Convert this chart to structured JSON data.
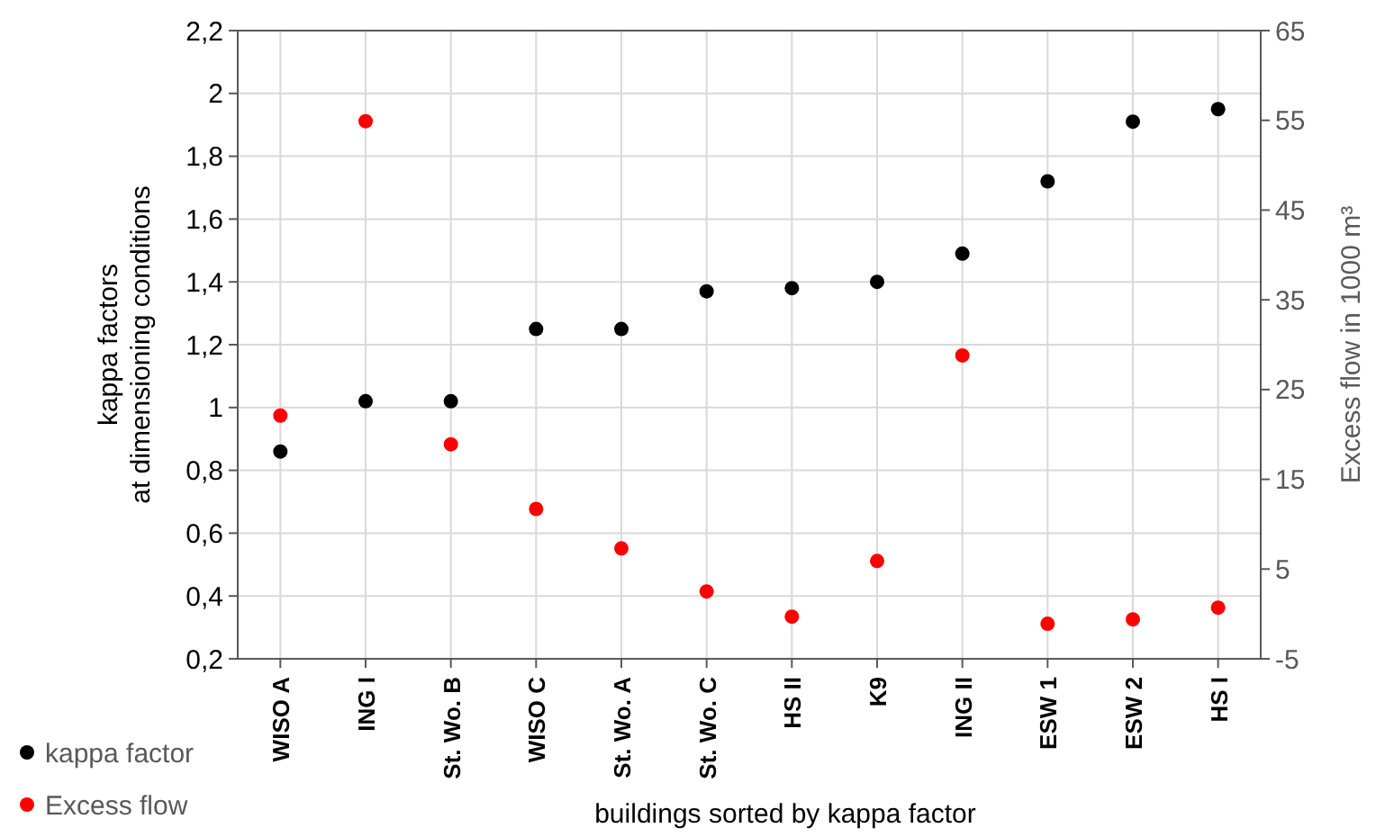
{
  "chart_data": {
    "type": "scatter",
    "xlabel": "buildings sorted by kappa factor",
    "ylabel": "kappa factors\nat dimensioning conditions",
    "y2label": "Excess flow in 1000 m³",
    "categories": [
      "WISO A",
      "ING I",
      "St. Wo. B",
      "WISO C",
      "St. Wo. A",
      "St. Wo. C",
      "HS II",
      "K9",
      "ING II",
      "ESW 1",
      "ESW 2",
      "HS I"
    ],
    "series": [
      {
        "name": "kappa factor",
        "color": "#000000",
        "values": [
          0.86,
          1.02,
          1.02,
          1.25,
          1.25,
          1.37,
          1.38,
          1.4,
          1.49,
          1.72,
          1.91,
          1.95
        ]
      },
      {
        "name": "Excess flow",
        "color": "#ff0000",
        "axis": "y2",
        "values": [
          22.1,
          54.9,
          18.9,
          11.7,
          7.3,
          2.5,
          -0.3,
          5.9,
          28.8,
          -1.1,
          -0.6,
          0.7
        ]
      }
    ],
    "ylim": [
      0.2,
      2.2
    ],
    "yticks": [
      {
        "value": 0.2,
        "label": "0,2"
      },
      {
        "value": 0.4,
        "label": "0,4"
      },
      {
        "value": 0.6,
        "label": "0,6"
      },
      {
        "value": 0.8,
        "label": "0,8"
      },
      {
        "value": 1,
        "label": "1"
      },
      {
        "value": 1.2,
        "label": "1,2"
      },
      {
        "value": 1.4,
        "label": "1,4"
      },
      {
        "value": 1.6,
        "label": "1,6"
      },
      {
        "value": 1.8,
        "label": "1,8"
      },
      {
        "value": 2,
        "label": "2"
      },
      {
        "value": 2.2,
        "label": "2,2"
      }
    ],
    "y2lim": [
      -5,
      65
    ],
    "y2ticks": [
      -5,
      5,
      15,
      25,
      35,
      45,
      55,
      65
    ],
    "grid": true,
    "legend": "bottom left",
    "marker": "circle"
  }
}
